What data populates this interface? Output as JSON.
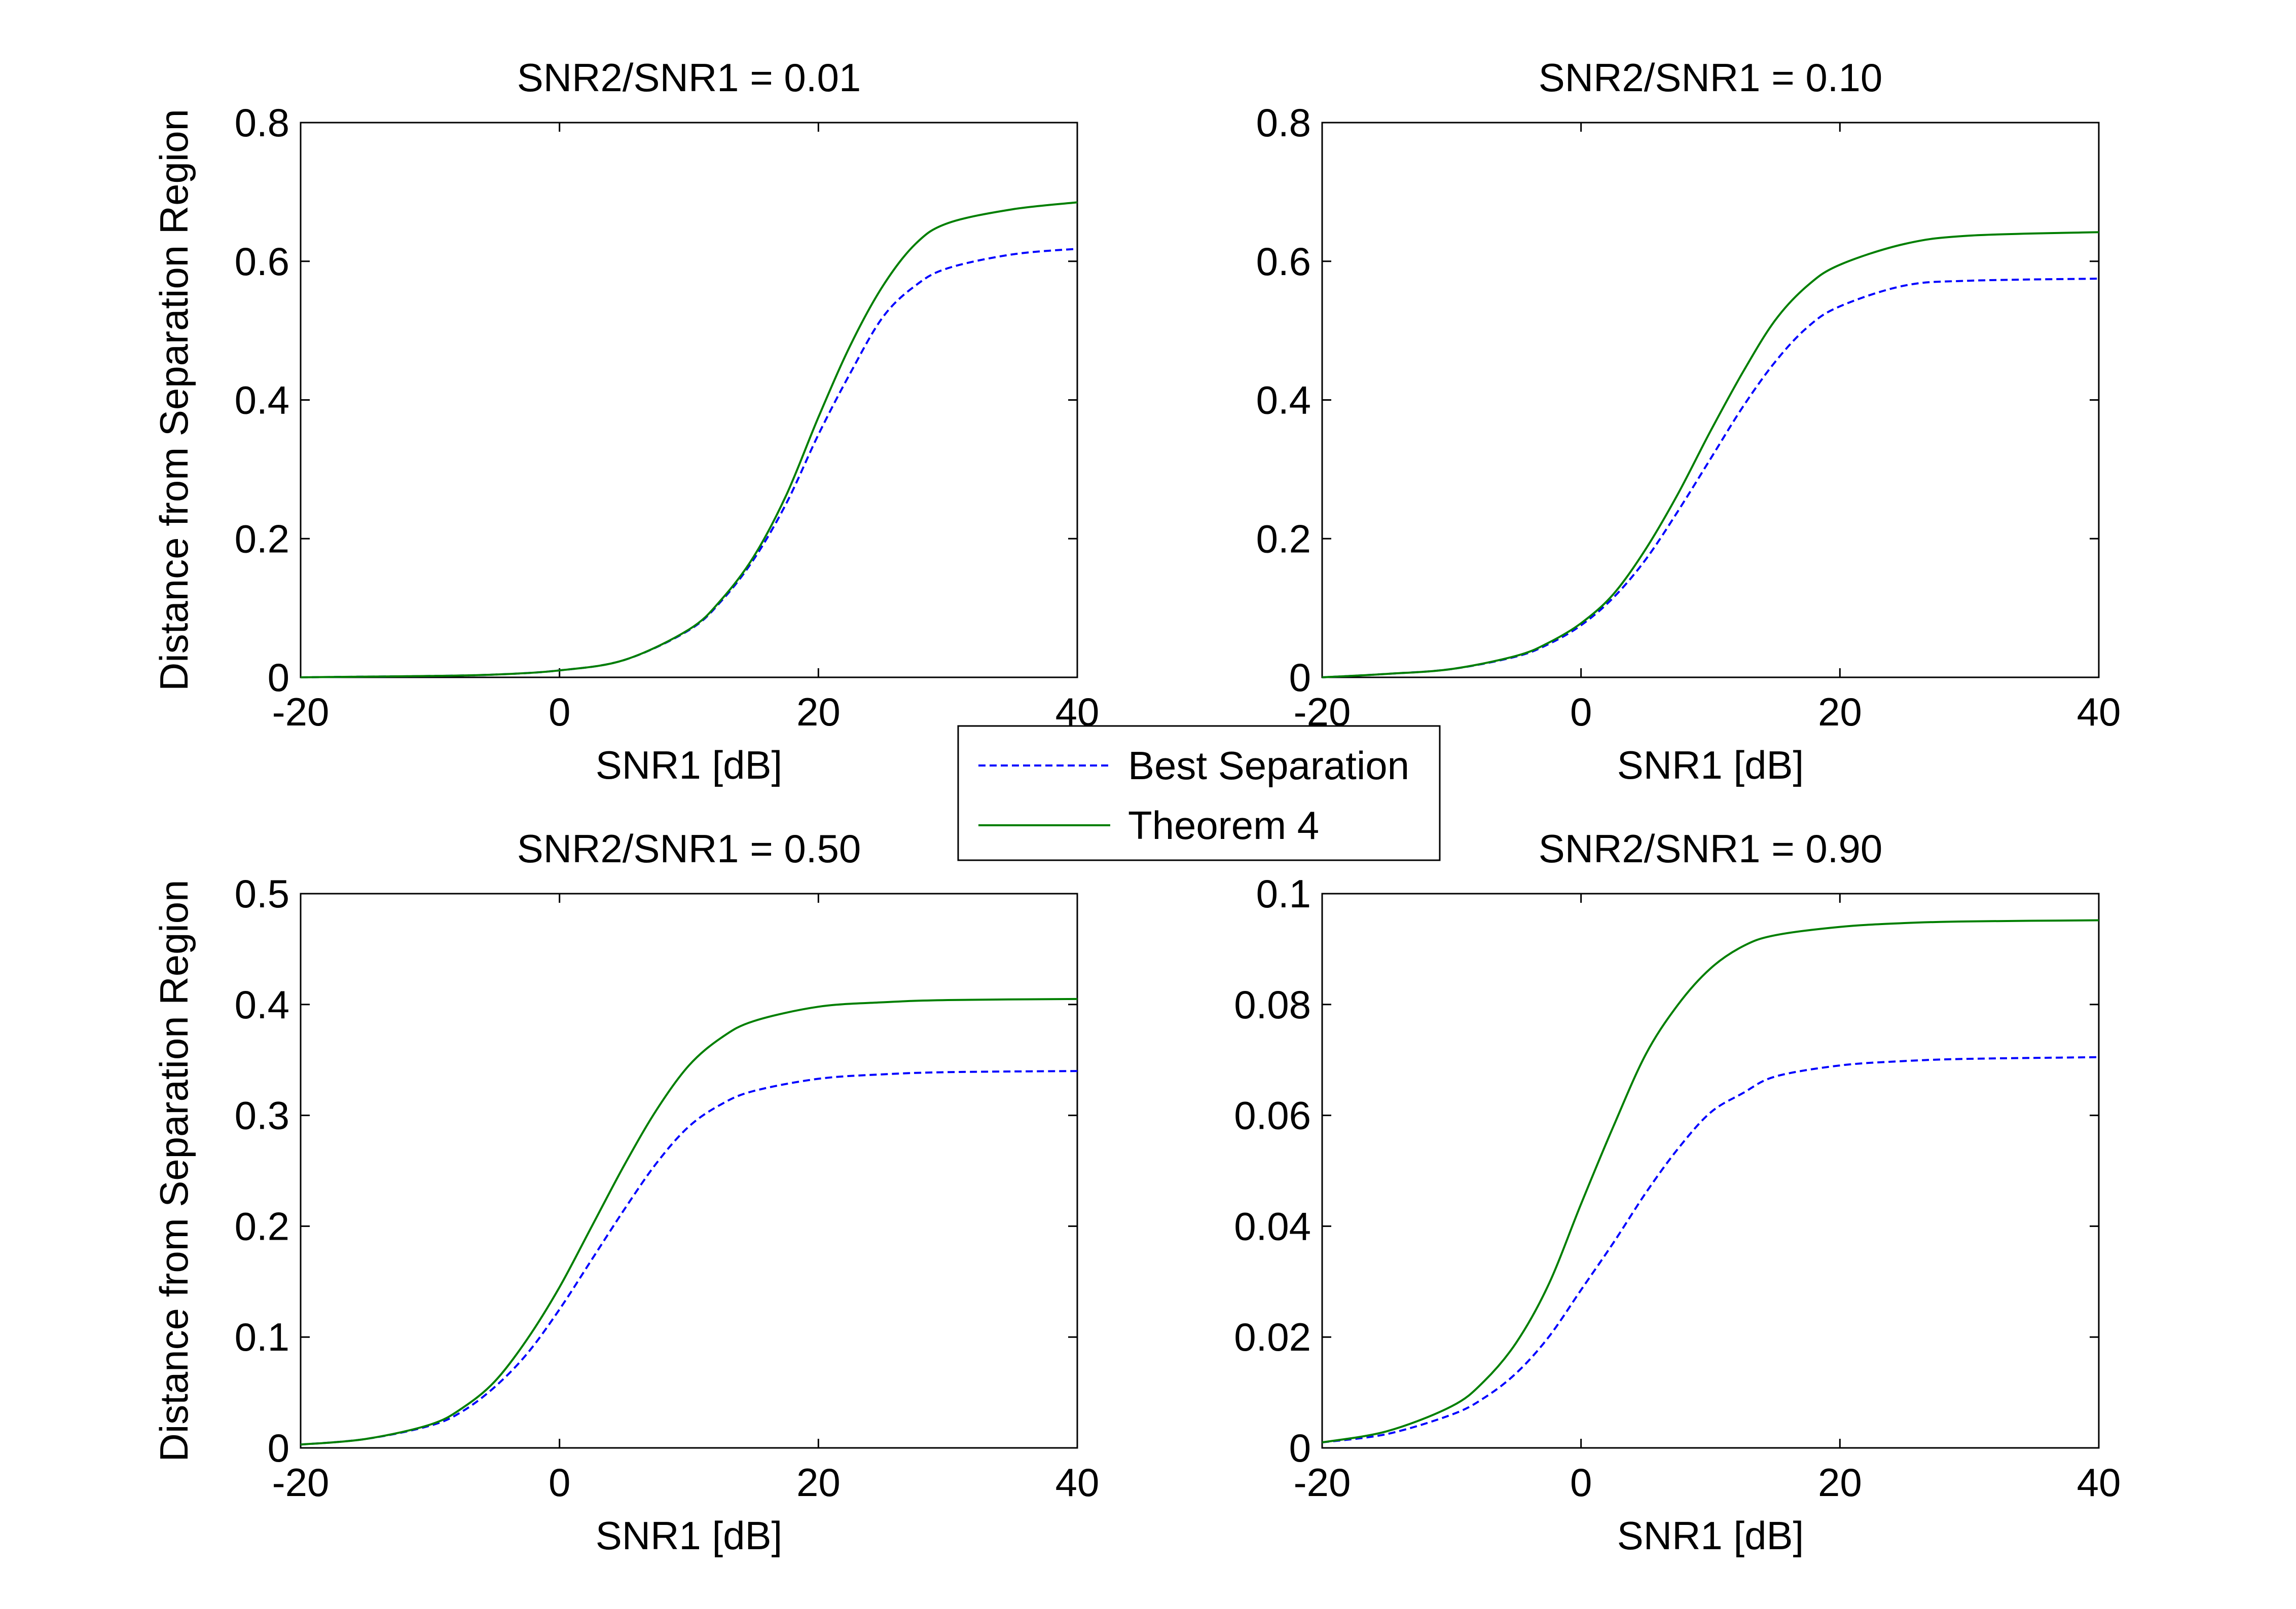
{
  "chart_data": [
    {
      "type": "line",
      "title": "SNR2/SNR1 = 0.01",
      "xlabel": "SNR1 [dB]",
      "ylabel": "Distance from Separation Region",
      "xlim": [
        -20,
        40
      ],
      "ylim": [
        0,
        0.8
      ],
      "xticks": [
        -20,
        0,
        20,
        40
      ],
      "xtick_labels": [
        "-20",
        "0",
        "20",
        "40"
      ],
      "yticks": [
        0,
        0.2,
        0.4,
        0.6,
        0.8
      ],
      "ytick_labels": [
        "0",
        "0.2",
        "0.4",
        "0.6",
        "0.8"
      ],
      "x": [
        -20,
        -15,
        -10,
        -5,
        0,
        5,
        10,
        12.5,
        15,
        17.5,
        20,
        22.5,
        25,
        27.5,
        30,
        35,
        40
      ],
      "series": [
        {
          "name": "Best Separation",
          "values": [
            0.0,
            0.001,
            0.002,
            0.004,
            0.01,
            0.025,
            0.068,
            0.11,
            0.17,
            0.25,
            0.35,
            0.44,
            0.52,
            0.565,
            0.59,
            0.61,
            0.618
          ]
        },
        {
          "name": "Theorem 4",
          "values": [
            0.0,
            0.001,
            0.002,
            0.004,
            0.01,
            0.025,
            0.069,
            0.112,
            0.174,
            0.262,
            0.375,
            0.48,
            0.565,
            0.625,
            0.655,
            0.675,
            0.685
          ]
        }
      ]
    },
    {
      "type": "line",
      "title": "SNR2/SNR1 = 0.10",
      "xlabel": "SNR1 [dB]",
      "ylabel": "",
      "xlim": [
        -20,
        40
      ],
      "ylim": [
        0,
        0.8
      ],
      "xticks": [
        -20,
        0,
        20,
        40
      ],
      "xtick_labels": [
        "-20",
        "0",
        "20",
        "40"
      ],
      "yticks": [
        0,
        0.2,
        0.4,
        0.6,
        0.8
      ],
      "ytick_labels": [
        "0",
        "0.2",
        "0.4",
        "0.6",
        "0.8"
      ],
      "x": [
        -20,
        -15,
        -10,
        -5,
        -2.5,
        0,
        2.5,
        5,
        7.5,
        10,
        12.5,
        15,
        17.5,
        20,
        25,
        30,
        40
      ],
      "series": [
        {
          "name": "Best Separation",
          "values": [
            0.0,
            0.005,
            0.012,
            0.03,
            0.048,
            0.075,
            0.115,
            0.17,
            0.24,
            0.315,
            0.39,
            0.455,
            0.505,
            0.535,
            0.565,
            0.572,
            0.575
          ]
        },
        {
          "name": "Theorem 4",
          "values": [
            0.0,
            0.005,
            0.012,
            0.031,
            0.05,
            0.078,
            0.12,
            0.185,
            0.265,
            0.355,
            0.44,
            0.515,
            0.565,
            0.595,
            0.625,
            0.637,
            0.642
          ]
        }
      ]
    },
    {
      "type": "line",
      "title": "SNR2/SNR1 = 0.50",
      "xlabel": "SNR1 [dB]",
      "ylabel": "Distance from Separation Region",
      "xlim": [
        -20,
        40
      ],
      "ylim": [
        0,
        0.5
      ],
      "xticks": [
        -20,
        0,
        20,
        40
      ],
      "xtick_labels": [
        "-20",
        "0",
        "20",
        "40"
      ],
      "yticks": [
        0,
        0.1,
        0.2,
        0.3,
        0.4,
        0.5
      ],
      "ytick_labels": [
        "0",
        "0.1",
        "0.2",
        "0.3",
        "0.4",
        "0.5"
      ],
      "x": [
        -20,
        -15,
        -10,
        -7.5,
        -5,
        -2.5,
        0,
        2.5,
        5,
        7.5,
        10,
        12.5,
        15,
        20,
        25,
        30,
        40
      ],
      "series": [
        {
          "name": "Best Separation",
          "values": [
            0.003,
            0.008,
            0.02,
            0.033,
            0.055,
            0.085,
            0.125,
            0.17,
            0.215,
            0.257,
            0.29,
            0.31,
            0.322,
            0.333,
            0.337,
            0.339,
            0.34
          ]
        },
        {
          "name": "Theorem 4",
          "values": [
            0.003,
            0.008,
            0.021,
            0.036,
            0.06,
            0.098,
            0.145,
            0.2,
            0.255,
            0.305,
            0.345,
            0.37,
            0.385,
            0.398,
            0.402,
            0.404,
            0.405
          ]
        }
      ]
    },
    {
      "type": "line",
      "title": "SNR2/SNR1 = 0.90",
      "xlabel": "SNR1 [dB]",
      "ylabel": "",
      "xlim": [
        -20,
        40
      ],
      "ylim": [
        0,
        0.1
      ],
      "xticks": [
        -20,
        0,
        20,
        40
      ],
      "xtick_labels": [
        "-20",
        "0",
        "20",
        "40"
      ],
      "yticks": [
        0,
        0.02,
        0.04,
        0.06,
        0.08,
        0.1
      ],
      "ytick_labels": [
        "0",
        "0.02",
        "0.04",
        "0.06",
        "0.08",
        "0.1"
      ],
      "x": [
        -20,
        -15,
        -10,
        -7.5,
        -5,
        -2.5,
        0,
        2.5,
        5,
        7.5,
        10,
        12.5,
        15,
        20,
        25,
        30,
        40
      ],
      "series": [
        {
          "name": "Best Separation",
          "values": [
            0.001,
            0.0025,
            0.006,
            0.009,
            0.0135,
            0.02,
            0.0285,
            0.037,
            0.046,
            0.054,
            0.0605,
            0.064,
            0.067,
            0.069,
            0.0698,
            0.0702,
            0.0705
          ]
        },
        {
          "name": "Theorem 4",
          "values": [
            0.001,
            0.003,
            0.0075,
            0.012,
            0.019,
            0.0295,
            0.044,
            0.058,
            0.071,
            0.08,
            0.0865,
            0.0905,
            0.0925,
            0.094,
            0.0947,
            0.095,
            0.0952
          ]
        }
      ]
    }
  ],
  "legend": {
    "placement": "center",
    "items": [
      {
        "label": "Best Separation",
        "color": "#0000FF",
        "style": "dashed"
      },
      {
        "label": "Theorem 4",
        "color": "#007F00",
        "style": "solid"
      }
    ]
  }
}
